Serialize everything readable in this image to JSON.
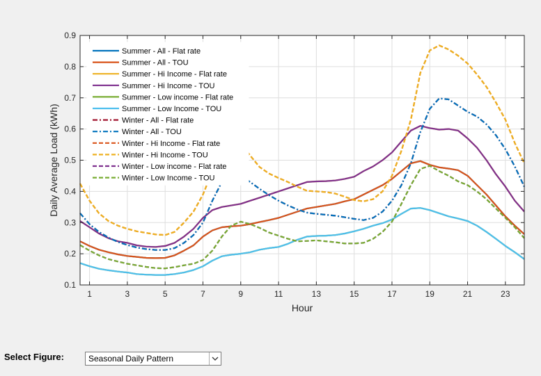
{
  "chart_data": {
    "type": "line",
    "xlabel": "Hour",
    "ylabel": "Daily Average Load (kWh)",
    "xlim": [
      0.5,
      24
    ],
    "ylim": [
      0.1,
      0.9
    ],
    "xticks": [
      1,
      3,
      5,
      7,
      9,
      11,
      13,
      15,
      17,
      19,
      21,
      23
    ],
    "yticks": [
      0.1,
      0.2,
      0.3,
      0.4,
      0.5,
      0.6,
      0.7,
      0.8,
      0.9
    ],
    "ytick_labels": [
      "0.1",
      "0.2",
      "0.3",
      "0.4",
      "0.5",
      "0.6",
      "0.7",
      "0.8",
      "0.9"
    ],
    "grid": true,
    "legend_position": "top-left",
    "x": [
      0.5,
      1,
      1.5,
      2,
      2.5,
      3,
      3.5,
      4,
      4.5,
      5,
      5.5,
      6,
      6.5,
      7,
      7.5,
      8,
      8.5,
      9,
      9.5,
      10,
      10.5,
      11,
      11.5,
      12,
      12.5,
      13,
      13.5,
      14,
      14.5,
      15,
      15.5,
      16,
      16.5,
      17,
      17.5,
      18,
      18.5,
      19,
      19.5,
      20,
      20.5,
      21,
      21.5,
      22,
      22.5,
      23,
      23.5,
      24
    ],
    "series": [
      {
        "name": "Summer - All - Flat rate",
        "color": "#0072bd",
        "dash": "solid",
        "values": [
          0.24,
          0.225,
          0.213,
          0.205,
          0.198,
          0.193,
          0.19,
          0.187,
          0.186,
          0.187,
          0.195,
          0.21,
          0.227,
          0.255,
          0.275,
          0.285,
          0.288,
          0.29,
          0.295,
          0.302,
          0.308,
          0.315,
          0.325,
          0.335,
          0.345,
          0.35,
          0.355,
          0.36,
          0.368,
          0.375,
          0.39,
          0.405,
          0.42,
          0.44,
          0.465,
          0.49,
          0.497,
          0.485,
          0.477,
          0.473,
          0.468,
          0.45,
          0.42,
          0.39,
          0.355,
          0.32,
          0.29,
          0.263
        ]
      },
      {
        "name": "Summer - All - TOU",
        "color": "#d95319",
        "dash": "solid",
        "values": [
          0.24,
          0.225,
          0.213,
          0.205,
          0.198,
          0.193,
          0.19,
          0.187,
          0.186,
          0.187,
          0.195,
          0.21,
          0.227,
          0.255,
          0.275,
          0.285,
          0.288,
          0.29,
          0.295,
          0.302,
          0.308,
          0.315,
          0.325,
          0.335,
          0.345,
          0.35,
          0.355,
          0.36,
          0.368,
          0.375,
          0.39,
          0.405,
          0.42,
          0.44,
          0.465,
          0.49,
          0.497,
          0.485,
          0.477,
          0.473,
          0.468,
          0.45,
          0.42,
          0.39,
          0.355,
          0.32,
          0.29,
          0.263
        ]
      },
      {
        "name": "Summer - Hi Income - Flat rate",
        "color": "#edb120",
        "dash": "solid",
        "values": [
          0.305,
          0.285,
          0.265,
          0.25,
          0.24,
          0.235,
          0.227,
          0.223,
          0.222,
          0.225,
          0.235,
          0.255,
          0.28,
          0.315,
          0.34,
          0.35,
          0.355,
          0.36,
          0.37,
          0.38,
          0.39,
          0.4,
          0.41,
          0.42,
          0.43,
          0.432,
          0.433,
          0.435,
          0.44,
          0.447,
          0.465,
          0.48,
          0.5,
          0.525,
          0.56,
          0.595,
          0.61,
          0.603,
          0.598,
          0.6,
          0.595,
          0.57,
          0.54,
          0.5,
          0.455,
          0.415,
          0.37,
          0.335
        ]
      },
      {
        "name": "Summer - Hi Income - TOU",
        "color": "#7e2f8e",
        "dash": "solid",
        "values": [
          0.305,
          0.285,
          0.265,
          0.25,
          0.24,
          0.235,
          0.227,
          0.223,
          0.222,
          0.225,
          0.235,
          0.255,
          0.28,
          0.315,
          0.34,
          0.35,
          0.355,
          0.36,
          0.37,
          0.38,
          0.39,
          0.4,
          0.41,
          0.42,
          0.43,
          0.432,
          0.433,
          0.435,
          0.44,
          0.447,
          0.465,
          0.48,
          0.5,
          0.525,
          0.56,
          0.595,
          0.61,
          0.603,
          0.598,
          0.6,
          0.595,
          0.57,
          0.54,
          0.5,
          0.455,
          0.415,
          0.37,
          0.335
        ]
      },
      {
        "name": "Summer - Low income - Flat rate",
        "color": "#77ac30",
        "dash": "solid",
        "values": [
          0.17,
          0.16,
          0.152,
          0.147,
          0.143,
          0.14,
          0.135,
          0.133,
          0.132,
          0.132,
          0.135,
          0.14,
          0.148,
          0.16,
          0.178,
          0.192,
          0.197,
          0.2,
          0.205,
          0.213,
          0.218,
          0.222,
          0.232,
          0.245,
          0.255,
          0.257,
          0.258,
          0.26,
          0.265,
          0.272,
          0.28,
          0.29,
          0.298,
          0.31,
          0.328,
          0.345,
          0.347,
          0.34,
          0.33,
          0.32,
          0.313,
          0.305,
          0.29,
          0.27,
          0.248,
          0.225,
          0.205,
          0.183
        ]
      },
      {
        "name": "Summer - Low Income - TOU",
        "color": "#4dbeee",
        "dash": "solid",
        "values": [
          0.17,
          0.16,
          0.152,
          0.147,
          0.143,
          0.14,
          0.135,
          0.133,
          0.132,
          0.132,
          0.135,
          0.14,
          0.148,
          0.16,
          0.178,
          0.192,
          0.197,
          0.2,
          0.205,
          0.213,
          0.218,
          0.222,
          0.232,
          0.245,
          0.255,
          0.257,
          0.258,
          0.26,
          0.265,
          0.272,
          0.28,
          0.29,
          0.298,
          0.31,
          0.328,
          0.345,
          0.347,
          0.34,
          0.33,
          0.32,
          0.313,
          0.305,
          0.29,
          0.27,
          0.248,
          0.225,
          0.205,
          0.183
        ]
      },
      {
        "name": "Winter - All - Flat rate",
        "color": "#a2142f",
        "dash": "dashdot",
        "values": [
          0.33,
          0.295,
          0.27,
          0.252,
          0.238,
          0.228,
          0.22,
          0.215,
          0.212,
          0.212,
          0.218,
          0.235,
          0.26,
          0.3,
          0.37,
          0.43,
          0.46,
          0.453,
          0.43,
          0.408,
          0.388,
          0.37,
          0.355,
          0.342,
          0.332,
          0.328,
          0.325,
          0.322,
          0.317,
          0.312,
          0.308,
          0.315,
          0.335,
          0.37,
          0.42,
          0.49,
          0.59,
          0.665,
          0.698,
          0.695,
          0.675,
          0.655,
          0.64,
          0.615,
          0.58,
          0.535,
          0.48,
          0.415
        ]
      },
      {
        "name": "Winter - All - TOU",
        "color": "#0072bd",
        "dash": "dashdot",
        "values": [
          0.33,
          0.295,
          0.27,
          0.252,
          0.238,
          0.228,
          0.22,
          0.215,
          0.212,
          0.212,
          0.218,
          0.235,
          0.26,
          0.3,
          0.37,
          0.43,
          0.46,
          0.453,
          0.43,
          0.408,
          0.388,
          0.37,
          0.355,
          0.342,
          0.332,
          0.328,
          0.325,
          0.322,
          0.317,
          0.312,
          0.308,
          0.315,
          0.335,
          0.37,
          0.42,
          0.49,
          0.59,
          0.665,
          0.698,
          0.695,
          0.675,
          0.655,
          0.64,
          0.615,
          0.58,
          0.535,
          0.48,
          0.415
        ]
      },
      {
        "name": "Winter - Hi Income - Flat rate",
        "color": "#d95319",
        "dash": "dashed",
        "values": [
          0.425,
          0.37,
          0.33,
          0.305,
          0.29,
          0.28,
          0.272,
          0.267,
          0.262,
          0.26,
          0.27,
          0.3,
          0.335,
          0.39,
          0.465,
          0.54,
          0.575,
          0.555,
          0.515,
          0.478,
          0.457,
          0.443,
          0.43,
          0.415,
          0.402,
          0.4,
          0.398,
          0.393,
          0.383,
          0.372,
          0.368,
          0.375,
          0.4,
          0.45,
          0.53,
          0.63,
          0.78,
          0.852,
          0.868,
          0.855,
          0.835,
          0.81,
          0.775,
          0.735,
          0.685,
          0.63,
          0.555,
          0.49
        ]
      },
      {
        "name": "Winter - Hi Income - TOU",
        "color": "#edb120",
        "dash": "dashed",
        "values": [
          0.425,
          0.37,
          0.33,
          0.305,
          0.29,
          0.28,
          0.272,
          0.267,
          0.262,
          0.26,
          0.27,
          0.3,
          0.335,
          0.39,
          0.465,
          0.54,
          0.575,
          0.555,
          0.515,
          0.478,
          0.457,
          0.443,
          0.43,
          0.415,
          0.402,
          0.4,
          0.398,
          0.393,
          0.383,
          0.372,
          0.368,
          0.375,
          0.4,
          0.45,
          0.53,
          0.63,
          0.78,
          0.852,
          0.868,
          0.855,
          0.835,
          0.81,
          0.775,
          0.735,
          0.685,
          0.63,
          0.555,
          0.49
        ]
      },
      {
        "name": "Winter - Low income - Flat rate",
        "color": "#7e2f8e",
        "dash": "dashed",
        "values": [
          0.228,
          0.21,
          0.195,
          0.183,
          0.175,
          0.168,
          0.163,
          0.158,
          0.154,
          0.153,
          0.157,
          0.163,
          0.168,
          0.18,
          0.21,
          0.255,
          0.29,
          0.303,
          0.295,
          0.283,
          0.268,
          0.258,
          0.248,
          0.24,
          0.241,
          0.243,
          0.24,
          0.237,
          0.233,
          0.233,
          0.235,
          0.248,
          0.27,
          0.303,
          0.36,
          0.42,
          0.472,
          0.482,
          0.465,
          0.45,
          0.432,
          0.42,
          0.4,
          0.375,
          0.345,
          0.315,
          0.285,
          0.25
        ]
      },
      {
        "name": "Winter - Low Income - TOU",
        "color": "#77ac30",
        "dash": "dashed",
        "values": [
          0.228,
          0.21,
          0.195,
          0.183,
          0.175,
          0.168,
          0.163,
          0.158,
          0.154,
          0.153,
          0.157,
          0.163,
          0.168,
          0.18,
          0.21,
          0.255,
          0.29,
          0.303,
          0.295,
          0.283,
          0.268,
          0.258,
          0.248,
          0.24,
          0.241,
          0.243,
          0.24,
          0.237,
          0.233,
          0.233,
          0.235,
          0.248,
          0.27,
          0.303,
          0.36,
          0.42,
          0.472,
          0.482,
          0.465,
          0.45,
          0.432,
          0.42,
          0.4,
          0.375,
          0.345,
          0.315,
          0.285,
          0.25
        ]
      }
    ]
  },
  "controls": {
    "select_label": "Select Figure:",
    "select_value": "Seasonal Daily Pattern"
  }
}
